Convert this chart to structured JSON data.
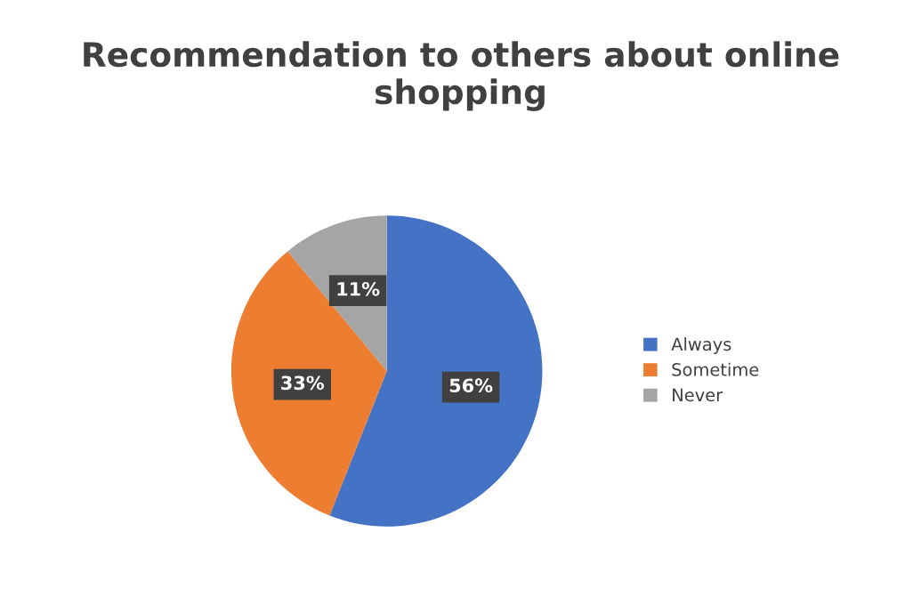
{
  "chart_data": {
    "type": "pie",
    "title": "Recommendation to others about online shopping",
    "categories": [
      "Always",
      "Sometime",
      "Never"
    ],
    "values": [
      56,
      33,
      11
    ],
    "colors": [
      "#4472c4",
      "#ed7d31",
      "#a5a5a5"
    ],
    "value_labels": [
      "56%",
      "33%",
      "11%"
    ],
    "legend": "right"
  }
}
